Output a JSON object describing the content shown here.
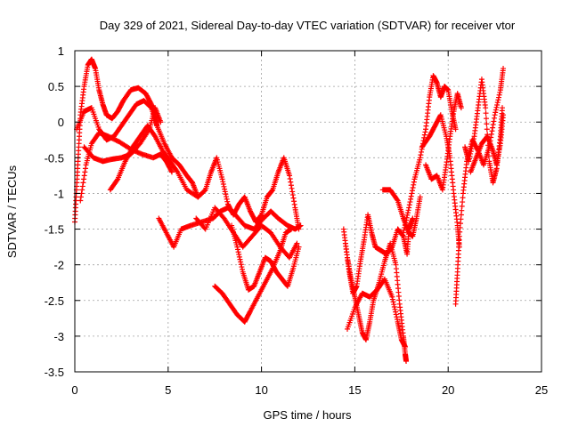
{
  "chart_data": {
    "type": "scatter",
    "title": "Day 329 of 2021, Sidereal Day-to-day VTEC variation (SDTVAR) for receiver vtor",
    "xlabel": "GPS time / hours",
    "ylabel": "SDTVAR / TECUs",
    "xlim": [
      0,
      25
    ],
    "ylim": [
      -3.5,
      1
    ],
    "xticks": [
      0,
      5,
      10,
      15,
      20,
      25
    ],
    "xtick_labels": [
      "0",
      "5",
      "10",
      "15",
      "20",
      "25"
    ],
    "yticks": [
      1,
      0.5,
      0,
      -0.5,
      -1,
      -1.5,
      -2,
      -2.5,
      -3,
      -3.5
    ],
    "ytick_labels": [
      "1",
      "0.5",
      "0",
      "-0.5",
      "-1",
      "-1.5",
      "-2",
      "-2.5",
      "-3",
      "-3.5"
    ],
    "grid": true,
    "marker": "+",
    "color": "#ff0000",
    "series": [
      {
        "values": [
          [
            0.0,
            -1.4
          ],
          [
            0.1,
            -0.9
          ],
          [
            0.2,
            -0.4
          ],
          [
            0.3,
            0.1
          ],
          [
            0.5,
            0.5
          ],
          [
            0.7,
            0.8
          ],
          [
            0.9,
            0.88
          ],
          [
            1.1,
            0.75
          ],
          [
            1.3,
            0.45
          ],
          [
            1.5,
            0.25
          ],
          [
            1.7,
            0.1
          ],
          [
            2.0,
            0.05
          ],
          [
            2.3,
            0.15
          ],
          [
            2.6,
            0.3
          ],
          [
            3.0,
            0.45
          ],
          [
            3.4,
            0.48
          ],
          [
            3.8,
            0.4
          ],
          [
            4.1,
            0.25
          ],
          [
            4.3,
            0.1
          ],
          [
            4.4,
            -0.05
          ]
        ]
      },
      {
        "values": [
          [
            0.1,
            -0.1
          ],
          [
            0.5,
            0.15
          ],
          [
            0.9,
            0.2
          ],
          [
            1.3,
            -0.1
          ],
          [
            1.7,
            -0.25
          ],
          [
            2.1,
            -0.2
          ],
          [
            2.5,
            -0.05
          ],
          [
            2.9,
            0.1
          ],
          [
            3.3,
            0.25
          ],
          [
            3.7,
            0.3
          ],
          [
            4.1,
            0.2
          ],
          [
            4.4,
            -0.05
          ],
          [
            4.8,
            -0.3
          ],
          [
            5.2,
            -0.5
          ],
          [
            5.6,
            -0.6
          ],
          [
            6.0,
            -0.75
          ],
          [
            6.3,
            -0.85
          ]
        ]
      },
      {
        "values": [
          [
            0.3,
            -1.1
          ],
          [
            0.6,
            -0.6
          ],
          [
            0.9,
            -0.3
          ],
          [
            1.3,
            -0.15
          ],
          [
            1.8,
            -0.2
          ],
          [
            2.4,
            -0.28
          ],
          [
            3.0,
            -0.38
          ],
          [
            3.6,
            -0.45
          ],
          [
            4.2,
            -0.5
          ],
          [
            4.6,
            -0.45
          ],
          [
            4.9,
            -0.55
          ],
          [
            5.2,
            -0.7
          ]
        ]
      },
      {
        "values": [
          [
            0.5,
            -0.35
          ],
          [
            1.0,
            -0.5
          ],
          [
            1.5,
            -0.55
          ],
          [
            2.0,
            -0.52
          ],
          [
            2.5,
            -0.5
          ],
          [
            3.0,
            -0.45
          ],
          [
            3.5,
            -0.3
          ],
          [
            4.0,
            -0.1
          ],
          [
            4.3,
            0.2
          ],
          [
            4.6,
            0.0
          ]
        ]
      },
      {
        "values": [
          [
            1.9,
            -0.95
          ],
          [
            2.3,
            -0.8
          ],
          [
            2.7,
            -0.55
          ],
          [
            3.1,
            -0.35
          ],
          [
            3.5,
            -0.2
          ],
          [
            3.9,
            -0.05
          ],
          [
            4.3,
            -0.2
          ],
          [
            4.7,
            -0.4
          ],
          [
            5.1,
            -0.55
          ],
          [
            5.5,
            -0.7
          ],
          [
            6.0,
            -0.95
          ],
          [
            6.6,
            -1.05
          ]
        ]
      },
      {
        "values": [
          [
            4.5,
            -1.35
          ],
          [
            4.9,
            -1.55
          ],
          [
            5.3,
            -1.75
          ],
          [
            5.7,
            -1.5
          ],
          [
            6.2,
            -1.45
          ],
          [
            6.8,
            -1.4
          ],
          [
            7.4,
            -1.35
          ],
          [
            7.8,
            -1.25
          ],
          [
            8.2,
            -1.2
          ],
          [
            8.6,
            -1.3
          ],
          [
            9.1,
            -1.45
          ],
          [
            9.6,
            -1.5
          ],
          [
            10.1,
            -1.35
          ],
          [
            10.5,
            -1.25
          ],
          [
            10.9,
            -1.35
          ],
          [
            11.4,
            -1.45
          ],
          [
            11.8,
            -1.5
          ],
          [
            12.1,
            -1.45
          ]
        ]
      },
      {
        "values": [
          [
            6.3,
            -0.85
          ],
          [
            6.6,
            -1.05
          ],
          [
            7.0,
            -0.95
          ],
          [
            7.3,
            -0.7
          ],
          [
            7.6,
            -0.5
          ],
          [
            7.9,
            -0.8
          ],
          [
            8.2,
            -1.15
          ],
          [
            8.5,
            -1.3
          ],
          [
            8.8,
            -1.15
          ],
          [
            9.1,
            -1.05
          ],
          [
            9.4,
            -1.25
          ],
          [
            9.7,
            -1.4
          ],
          [
            10.0,
            -1.3
          ],
          [
            10.3,
            -1.05
          ],
          [
            10.6,
            -0.95
          ],
          [
            10.9,
            -0.7
          ],
          [
            11.2,
            -0.5
          ],
          [
            11.5,
            -0.75
          ],
          [
            11.8,
            -1.2
          ],
          [
            12.0,
            -1.5
          ]
        ]
      },
      {
        "values": [
          [
            6.5,
            -1.35
          ],
          [
            7.0,
            -1.5
          ],
          [
            7.5,
            -1.2
          ],
          [
            8.0,
            -1.35
          ],
          [
            8.5,
            -1.55
          ],
          [
            9.0,
            -1.75
          ],
          [
            9.5,
            -1.6
          ],
          [
            10.0,
            -1.45
          ],
          [
            10.5,
            -1.55
          ],
          [
            11.0,
            -1.75
          ],
          [
            11.5,
            -1.9
          ],
          [
            11.9,
            -1.7
          ]
        ]
      },
      {
        "values": [
          [
            7.5,
            -2.3
          ],
          [
            7.9,
            -2.4
          ],
          [
            8.3,
            -2.55
          ],
          [
            8.7,
            -2.7
          ],
          [
            9.1,
            -2.8
          ],
          [
            9.4,
            -2.65
          ],
          [
            9.8,
            -2.45
          ],
          [
            10.2,
            -2.25
          ],
          [
            10.6,
            -2.05
          ],
          [
            11.0,
            -1.8
          ],
          [
            11.3,
            -1.55
          ],
          [
            11.6,
            -1.5
          ]
        ]
      },
      {
        "values": [
          [
            8.4,
            -1.45
          ],
          [
            8.7,
            -1.75
          ],
          [
            9.0,
            -2.1
          ],
          [
            9.3,
            -2.35
          ],
          [
            9.6,
            -2.3
          ],
          [
            9.9,
            -2.1
          ],
          [
            10.2,
            -1.9
          ],
          [
            10.5,
            -1.95
          ],
          [
            10.8,
            -2.1
          ],
          [
            11.1,
            -2.2
          ],
          [
            11.4,
            -2.3
          ],
          [
            11.7,
            -2.05
          ],
          [
            12.0,
            -1.75
          ]
        ]
      },
      {
        "values": [
          [
            14.5,
            -1.7
          ],
          [
            14.7,
            -2.1
          ],
          [
            14.9,
            -2.4
          ],
          [
            15.1,
            -2.3
          ],
          [
            15.3,
            -1.95
          ],
          [
            15.5,
            -1.65
          ],
          [
            15.7,
            -1.3
          ],
          [
            15.9,
            -1.55
          ],
          [
            16.1,
            -1.75
          ],
          [
            16.4,
            -1.8
          ],
          [
            16.7,
            -1.85
          ],
          [
            17.0,
            -1.75
          ],
          [
            17.3,
            -1.5
          ],
          [
            17.6,
            -1.6
          ],
          [
            17.8,
            -1.85
          ],
          [
            17.9,
            -1.5
          ],
          [
            18.1,
            -1.35
          ]
        ]
      },
      {
        "values": [
          [
            14.4,
            -1.5
          ],
          [
            14.6,
            -1.9
          ],
          [
            14.8,
            -2.2
          ],
          [
            15.0,
            -2.45
          ],
          [
            15.2,
            -2.7
          ],
          [
            15.4,
            -2.95
          ],
          [
            15.6,
            -3.05
          ],
          [
            15.8,
            -2.8
          ],
          [
            16.0,
            -2.5
          ],
          [
            16.3,
            -2.25
          ],
          [
            16.6,
            -1.95
          ],
          [
            16.9,
            -1.7
          ],
          [
            17.2,
            -2.0
          ],
          [
            17.4,
            -2.55
          ],
          [
            17.6,
            -3.0
          ],
          [
            17.7,
            -3.25
          ],
          [
            17.75,
            -3.35
          ]
        ]
      },
      {
        "values": [
          [
            14.6,
            -2.9
          ],
          [
            15.0,
            -2.6
          ],
          [
            15.4,
            -2.4
          ],
          [
            15.8,
            -2.45
          ],
          [
            16.2,
            -2.35
          ],
          [
            16.6,
            -2.2
          ],
          [
            17.0,
            -2.45
          ],
          [
            17.3,
            -2.8
          ],
          [
            17.5,
            -3.05
          ],
          [
            17.7,
            -3.15
          ]
        ]
      },
      {
        "values": [
          [
            16.5,
            -0.95
          ],
          [
            16.9,
            -0.95
          ],
          [
            17.3,
            -1.1
          ],
          [
            17.6,
            -1.35
          ],
          [
            17.9,
            -1.55
          ],
          [
            18.1,
            -1.6
          ],
          [
            18.3,
            -1.35
          ],
          [
            18.5,
            -1.05
          ]
        ]
      },
      {
        "values": [
          [
            17.6,
            -1.55
          ],
          [
            17.9,
            -1.2
          ],
          [
            18.2,
            -0.8
          ],
          [
            18.5,
            -0.5
          ],
          [
            18.8,
            -0.1
          ],
          [
            19.0,
            0.35
          ],
          [
            19.2,
            0.65
          ],
          [
            19.4,
            0.55
          ],
          [
            19.6,
            0.35
          ],
          [
            19.8,
            0.5
          ],
          [
            20.0,
            0.45
          ],
          [
            20.2,
            0.15
          ],
          [
            20.4,
            -0.1
          ]
        ]
      },
      {
        "values": [
          [
            18.6,
            -0.35
          ],
          [
            19.0,
            -0.2
          ],
          [
            19.3,
            -0.05
          ],
          [
            19.6,
            0.1
          ],
          [
            19.9,
            -0.2
          ],
          [
            20.1,
            -0.5
          ],
          [
            20.3,
            -1.0
          ],
          [
            20.5,
            -1.45
          ],
          [
            20.6,
            -1.75
          ]
        ]
      },
      {
        "values": [
          [
            18.8,
            -0.6
          ],
          [
            19.1,
            -0.8
          ],
          [
            19.4,
            -0.75
          ],
          [
            19.7,
            -0.95
          ],
          [
            19.9,
            -0.6
          ],
          [
            20.1,
            -0.2
          ],
          [
            20.3,
            0.15
          ],
          [
            20.5,
            0.4
          ],
          [
            20.7,
            0.2
          ]
        ]
      },
      {
        "values": [
          [
            20.4,
            -2.55
          ],
          [
            20.5,
            -2.1
          ],
          [
            20.6,
            -1.6
          ],
          [
            20.8,
            -1.0
          ],
          [
            21.0,
            -0.55
          ],
          [
            21.3,
            -0.25
          ],
          [
            21.6,
            -0.4
          ],
          [
            21.9,
            -0.6
          ],
          [
            22.2,
            -0.35
          ],
          [
            22.5,
            0.1
          ],
          [
            22.8,
            0.45
          ],
          [
            22.95,
            0.75
          ]
        ]
      },
      {
        "values": [
          [
            20.9,
            -0.35
          ],
          [
            21.1,
            -0.55
          ],
          [
            21.4,
            -0.2
          ],
          [
            21.6,
            0.2
          ],
          [
            21.8,
            0.6
          ],
          [
            22.0,
            0.2
          ],
          [
            22.2,
            -0.55
          ],
          [
            22.4,
            -0.85
          ],
          [
            22.6,
            -0.65
          ],
          [
            22.8,
            -0.2
          ],
          [
            22.9,
            0.2
          ]
        ]
      },
      {
        "values": [
          [
            21.2,
            -0.7
          ],
          [
            21.5,
            -0.5
          ],
          [
            21.8,
            -0.3
          ],
          [
            22.1,
            -0.2
          ],
          [
            22.4,
            -0.4
          ],
          [
            22.6,
            -0.6
          ],
          [
            22.8,
            -0.3
          ],
          [
            22.95,
            0.1
          ]
        ]
      }
    ]
  }
}
